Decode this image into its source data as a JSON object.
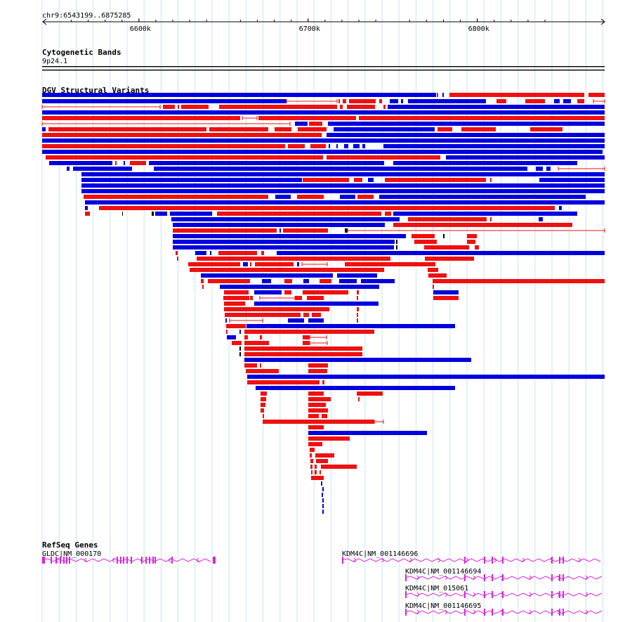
{
  "ruler": {
    "location": "chr9:6543199..6875285",
    "ticks": [
      {
        "label": "6600k",
        "pos": 6600000
      },
      {
        "label": "6700k",
        "pos": 6700000
      },
      {
        "label": "6800k",
        "pos": 6800000
      }
    ],
    "range": [
      6543199,
      6875285
    ]
  },
  "cytoband_track": {
    "title": "Cytogenetic Bands",
    "band": "9p24.1"
  },
  "dgv_track": {
    "title": "DGV Structural Variants",
    "colors": {
      "loss": "#ff0000",
      "gain": "#0000ff"
    }
  },
  "refseq_track": {
    "title": "RefSeq Genes",
    "color": "#cc33cc",
    "genes": [
      {
        "label": "GLDC|NM_000170",
        "strand": "-"
      },
      {
        "label": "KDM4C|NM_001146696",
        "strand": "+"
      },
      {
        "label": "KDM4C|NM_001146694",
        "strand": "+"
      },
      {
        "label": "KDM4C|NM_015061",
        "strand": "+"
      },
      {
        "label": "KDM4C|NM_001146695",
        "strand": "+"
      }
    ]
  }
}
